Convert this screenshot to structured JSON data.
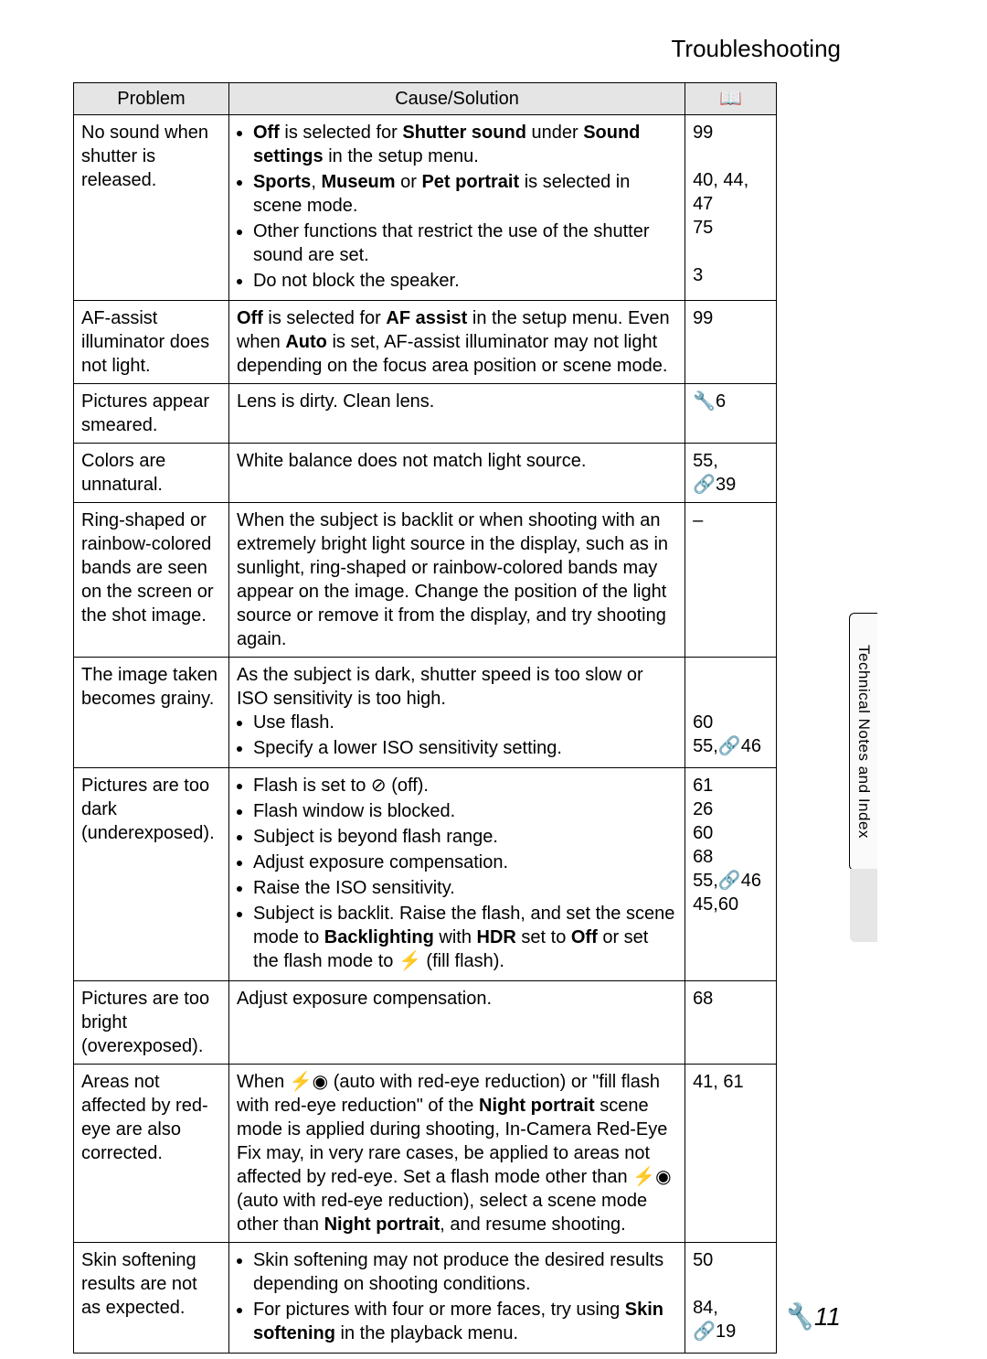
{
  "section_title": "Troubleshooting",
  "side_tab": "Technical Notes and Index",
  "page_number_icon": "🔧",
  "page_number": "11",
  "icons": {
    "book": "📖",
    "wrench": "🔧",
    "link": "🔗",
    "flash_off": "⊘",
    "flash_redeye": "⚡◉",
    "fill_flash": "⚡"
  },
  "headers": {
    "problem": "Problem",
    "cause": "Cause/Solution",
    "ref": "📖"
  },
  "rows": [
    {
      "problem": "No sound when shutter is released.",
      "cause": {
        "type": "list",
        "items": [
          [
            {
              "b": true,
              "t": "Off"
            },
            {
              "t": " is selected for "
            },
            {
              "b": true,
              "t": "Shutter sound"
            },
            {
              "t": " under "
            },
            {
              "b": true,
              "t": "Sound settings"
            },
            {
              "t": " in the setup menu."
            }
          ],
          [
            {
              "b": true,
              "t": "Sports"
            },
            {
              "t": ", "
            },
            {
              "b": true,
              "t": "Museum"
            },
            {
              "t": " or "
            },
            {
              "b": true,
              "t": "Pet portrait"
            },
            {
              "t": " is selected in scene mode."
            }
          ],
          [
            {
              "t": "Other functions that restrict the use of the shutter sound are set."
            }
          ],
          [
            {
              "t": "Do not block the speaker."
            }
          ]
        ]
      },
      "ref": [
        [
          {
            "t": "99"
          }
        ],
        [
          {
            "t": ""
          }
        ],
        [
          {
            "t": "40, 44, 47"
          }
        ],
        [
          {
            "t": "75"
          }
        ],
        [
          {
            "t": ""
          }
        ],
        [
          {
            "t": "3"
          }
        ]
      ]
    },
    {
      "problem": "AF-assist illuminator does not light.",
      "cause": {
        "type": "para",
        "runs": [
          {
            "b": true,
            "t": "Off"
          },
          {
            "t": " is selected for "
          },
          {
            "b": true,
            "t": "AF assist"
          },
          {
            "t": " in the setup menu. Even when "
          },
          {
            "b": true,
            "t": "Auto"
          },
          {
            "t": " is set, AF-assist illuminator may not light depending on the focus area position or scene mode."
          }
        ]
      },
      "ref": [
        [
          {
            "t": "99"
          }
        ]
      ]
    },
    {
      "problem": "Pictures appear smeared.",
      "cause": {
        "type": "para",
        "runs": [
          {
            "t": "Lens is dirty. Clean lens."
          }
        ]
      },
      "ref": [
        [
          {
            "icon": "wrench"
          },
          {
            "t": "6"
          }
        ]
      ]
    },
    {
      "problem": "Colors are unnatural.",
      "cause": {
        "type": "para",
        "runs": [
          {
            "t": "White balance does not match light source."
          }
        ]
      },
      "ref": [
        [
          {
            "t": "55,"
          }
        ],
        [
          {
            "icon": "link"
          },
          {
            "t": "39"
          }
        ]
      ]
    },
    {
      "problem": "Ring-shaped or rainbow-colored bands are seen on the screen or the shot image.",
      "cause": {
        "type": "para",
        "runs": [
          {
            "t": "When the subject is backlit or when shooting with an extremely bright light source in the display, such as in sunlight, ring-shaped or rainbow-colored bands may appear on the image. Change the position of the light source or remove it from the display, and try shooting again."
          }
        ]
      },
      "ref": [
        [
          {
            "t": "–"
          }
        ]
      ]
    },
    {
      "problem": "The image taken becomes grainy.",
      "cause": {
        "type": "para_list",
        "intro": [
          {
            "t": "As the subject is dark, shutter speed is too slow or ISO sensitivity is too high."
          }
        ],
        "items": [
          [
            {
              "t": "Use flash."
            }
          ],
          [
            {
              "t": "Specify a lower ISO sensitivity setting."
            }
          ]
        ]
      },
      "ref": [
        [
          {
            "t": ""
          }
        ],
        [
          {
            "t": ""
          }
        ],
        [
          {
            "t": "60"
          }
        ],
        [
          {
            "t": "55,"
          },
          {
            "icon": "link"
          },
          {
            "t": "46"
          }
        ]
      ]
    },
    {
      "problem": "Pictures are too dark (underexposed).",
      "cause": {
        "type": "list",
        "items": [
          [
            {
              "t": "Flash is set to "
            },
            {
              "icon": "flash_off"
            },
            {
              "t": " (off)."
            }
          ],
          [
            {
              "t": "Flash window is blocked."
            }
          ],
          [
            {
              "t": "Subject is beyond flash range."
            }
          ],
          [
            {
              "t": "Adjust exposure compensation."
            }
          ],
          [
            {
              "t": "Raise the ISO sensitivity."
            }
          ],
          [
            {
              "t": "Subject is backlit. Raise the flash, and set the scene mode to "
            },
            {
              "b": true,
              "t": "Backlighting"
            },
            {
              "t": " with "
            },
            {
              "b": true,
              "t": "HDR"
            },
            {
              "t": " set to "
            },
            {
              "b": true,
              "t": "Off"
            },
            {
              "t": " or set the flash mode to "
            },
            {
              "icon": "fill_flash"
            },
            {
              "t": " (fill flash)."
            }
          ]
        ]
      },
      "ref": [
        [
          {
            "t": "61"
          }
        ],
        [
          {
            "t": "26"
          }
        ],
        [
          {
            "t": "60"
          }
        ],
        [
          {
            "t": "68"
          }
        ],
        [
          {
            "t": "55,"
          },
          {
            "icon": "link"
          },
          {
            "t": "46"
          }
        ],
        [
          {
            "t": "45,60"
          }
        ]
      ]
    },
    {
      "problem": "Pictures are too bright (overexposed).",
      "cause": {
        "type": "para",
        "runs": [
          {
            "t": "Adjust exposure compensation."
          }
        ]
      },
      "ref": [
        [
          {
            "t": "68"
          }
        ]
      ]
    },
    {
      "problem": "Areas not affected by red-eye are also corrected.",
      "cause": {
        "type": "para",
        "runs": [
          {
            "t": "When "
          },
          {
            "icon": "flash_redeye"
          },
          {
            "t": " (auto with red-eye reduction) or \"fill flash with red-eye reduction\" of the "
          },
          {
            "b": true,
            "t": "Night portrait"
          },
          {
            "t": " scene mode is applied during shooting, In-Camera Red-Eye Fix may, in very rare cases, be applied to areas not affected by red-eye. Set a flash mode other than "
          },
          {
            "icon": "flash_redeye"
          },
          {
            "t": " (auto with red-eye reduction), select a scene mode other than "
          },
          {
            "b": true,
            "t": "Night portrait"
          },
          {
            "t": ", and resume shooting."
          }
        ]
      },
      "ref": [
        [
          {
            "t": "41, 61"
          }
        ]
      ]
    },
    {
      "problem": "Skin softening results are not as expected.",
      "cause": {
        "type": "list",
        "items": [
          [
            {
              "t": "Skin softening may not produce the desired results depending on shooting conditions."
            }
          ],
          [
            {
              "t": "For pictures with four or more faces, try using "
            },
            {
              "b": true,
              "t": "Skin softening"
            },
            {
              "t": " in the playback menu."
            }
          ]
        ]
      },
      "ref": [
        [
          {
            "t": "50"
          }
        ],
        [
          {
            "t": ""
          }
        ],
        [
          {
            "t": "84,"
          }
        ],
        [
          {
            "icon": "link"
          },
          {
            "t": "19"
          }
        ]
      ]
    }
  ]
}
